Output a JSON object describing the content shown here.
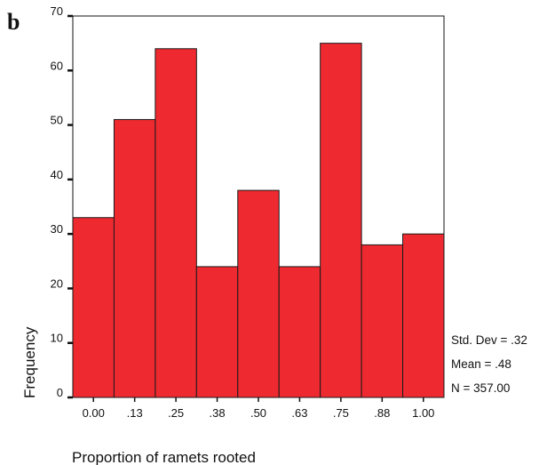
{
  "panel_label": "b",
  "stats": {
    "std_dev": "Std. Dev = .32",
    "mean": "Mean = .48",
    "n": "N = 357.00"
  },
  "chart_data": {
    "type": "bar",
    "title": "",
    "xlabel": "Proportion of ramets rooted",
    "ylabel": "Frequency",
    "categories": [
      ".00",
      ".13",
      ".25",
      ".38",
      ".50",
      ".63",
      ".75",
      ".88",
      "1.00"
    ],
    "x_tick_labels": [
      "0.00",
      ".13",
      ".25",
      ".38",
      ".50",
      ".63",
      ".75",
      ".88",
      "1.00"
    ],
    "values": [
      33,
      51,
      64,
      24,
      38,
      24,
      65,
      28,
      30
    ],
    "ylim": [
      0,
      70
    ],
    "yticks": [
      0,
      10,
      20,
      30,
      40,
      50,
      60,
      70
    ],
    "grid": false,
    "bar_color": "#ee2a30",
    "edge_color": "#1a1a1a"
  }
}
